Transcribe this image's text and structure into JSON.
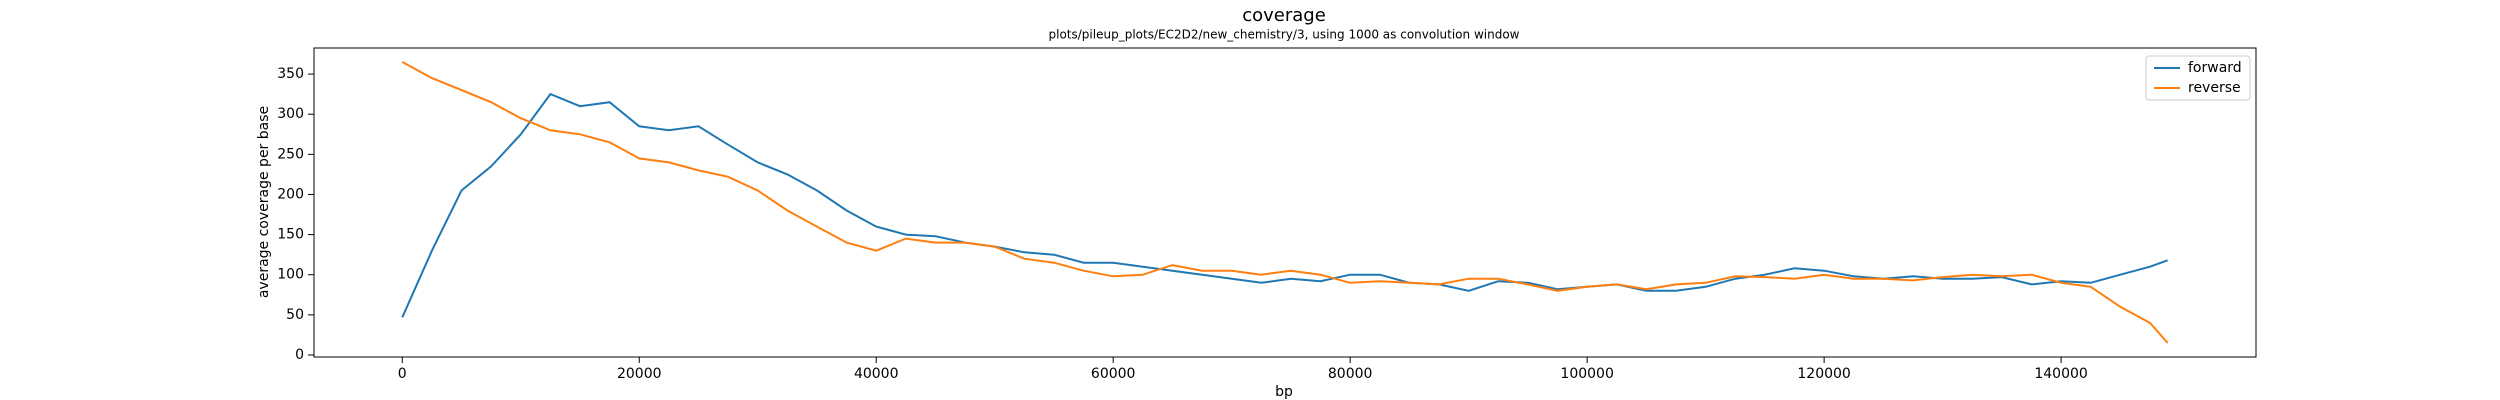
{
  "chart_data": {
    "type": "line",
    "title": "coverage",
    "subtitle": "plots/pileup_plots/EC2D2/new_chemistry/3, using 1000 as convolution window",
    "x_label": "bp",
    "y_label": "average coverage per base",
    "x": [
      0,
      2500,
      5000,
      7500,
      10000,
      12500,
      15000,
      17500,
      20000,
      22500,
      25000,
      27500,
      30000,
      32500,
      35000,
      37500,
      40000,
      42500,
      45000,
      47500,
      50000,
      52500,
      55000,
      57500,
      60000,
      62500,
      65000,
      67500,
      70000,
      72500,
      75000,
      77500,
      80000,
      82500,
      85000,
      87500,
      90000,
      92500,
      95000,
      97500,
      100000,
      102500,
      105000,
      107500,
      110000,
      112500,
      115000,
      117500,
      120000,
      122500,
      125000,
      127500,
      130000,
      132500,
      135000,
      137500,
      140000,
      142500,
      145000,
      147500,
      149000
    ],
    "series": [
      {
        "name": "forward",
        "color": "#1f77b4",
        "values": [
          47,
          130,
          205,
          235,
          275,
          325,
          310,
          315,
          285,
          280,
          285,
          262,
          240,
          225,
          205,
          180,
          160,
          150,
          148,
          140,
          135,
          128,
          125,
          115,
          115,
          110,
          105,
          100,
          95,
          90,
          95,
          92,
          100,
          100,
          90,
          88,
          80,
          92,
          90,
          82,
          85,
          88,
          80,
          80,
          85,
          95,
          100,
          108,
          105,
          98,
          95,
          98,
          95,
          95,
          97,
          88,
          92,
          90,
          100,
          110,
          118
        ]
      },
      {
        "name": "reverse",
        "color": "#ff7f0e",
        "values": [
          365,
          345,
          330,
          315,
          295,
          280,
          275,
          265,
          245,
          240,
          230,
          222,
          205,
          180,
          160,
          140,
          130,
          145,
          140,
          140,
          135,
          120,
          115,
          105,
          98,
          100,
          112,
          105,
          105,
          100,
          105,
          100,
          90,
          92,
          90,
          88,
          95,
          95,
          88,
          80,
          85,
          88,
          82,
          88,
          90,
          98,
          97,
          95,
          100,
          95,
          95,
          93,
          97,
          100,
          98,
          100,
          90,
          85,
          60,
          40,
          15
        ]
      }
    ],
    "xlim": [
      -7450,
      156450
    ],
    "ylim": [
      -2.5,
      382.5
    ],
    "xticks": [
      0,
      20000,
      40000,
      60000,
      80000,
      100000,
      120000,
      140000
    ],
    "yticks": [
      0,
      50,
      100,
      150,
      200,
      250,
      300,
      350
    ],
    "grid": false,
    "legend": "upper-right"
  }
}
